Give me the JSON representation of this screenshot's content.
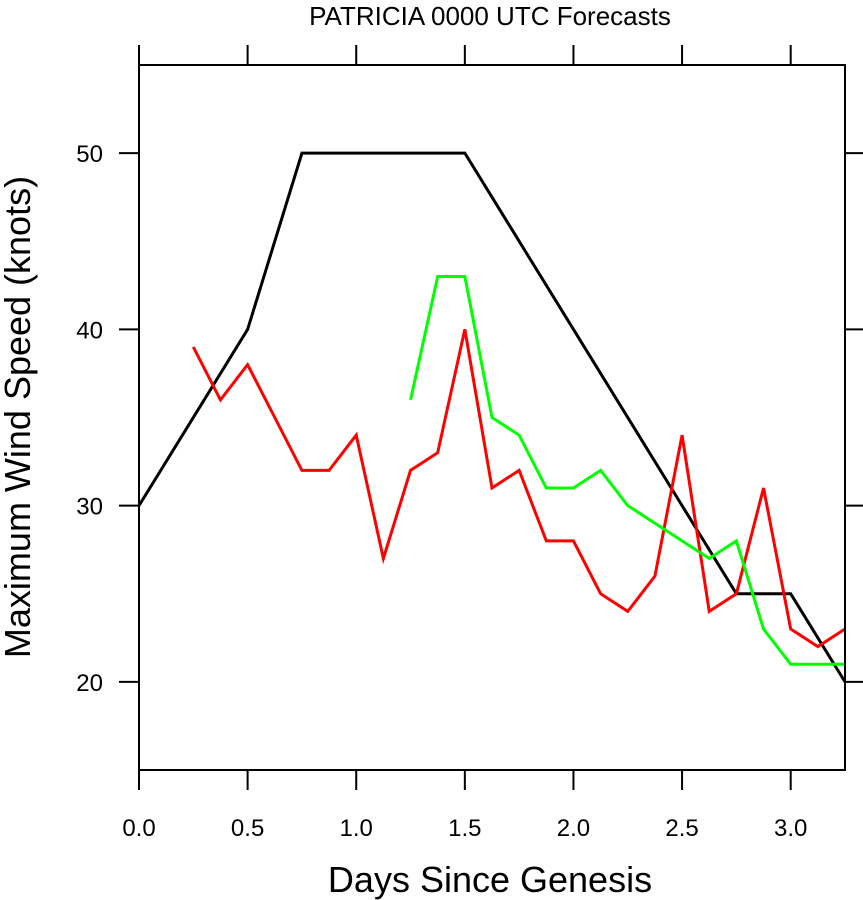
{
  "chart_data": {
    "type": "line",
    "title": "PATRICIA 0000 UTC Forecasts",
    "xlabel": "Days Since Genesis",
    "ylabel": "Maximum Wind Speed (knots)",
    "xlim": [
      0,
      3.25
    ],
    "ylim": [
      15,
      55
    ],
    "xticks": [
      "0.0",
      "0.5",
      "1.0",
      "1.5",
      "2.0",
      "2.5",
      "3.0"
    ],
    "yticks": [
      "20",
      "30",
      "40",
      "50"
    ],
    "grid": false,
    "series": [
      {
        "color": "#000000",
        "x": [
          0,
          0.5,
          0.75,
          1.5,
          2.5,
          2.75,
          3.0,
          3.25
        ],
        "y": [
          30,
          40,
          50,
          50,
          30,
          25,
          25,
          20
        ]
      },
      {
        "color": "#ff0000",
        "x": [
          0.25,
          0.375,
          0.5,
          0.625,
          0.75,
          0.875,
          1.0,
          1.125,
          1.25,
          1.375,
          1.5,
          1.625,
          1.75,
          1.875,
          2.0,
          2.125,
          2.25,
          2.375,
          2.5,
          2.625,
          2.75,
          2.875,
          3.0,
          3.125,
          3.25
        ],
        "y": [
          39,
          36,
          38,
          35,
          32,
          32,
          34,
          27,
          32,
          33,
          40,
          31,
          32,
          28,
          28,
          25,
          24,
          26,
          34,
          24,
          25,
          31,
          23,
          22,
          23
        ]
      },
      {
        "color": "#00ff00",
        "x": [
          1.25,
          1.375,
          1.5,
          1.625,
          1.75,
          1.875,
          2.0,
          2.125,
          2.25,
          2.375,
          2.5,
          2.625,
          2.75,
          2.875,
          3.0,
          3.125,
          3.25
        ],
        "y": [
          36,
          43,
          43,
          35,
          34,
          31,
          31,
          32,
          30,
          29,
          28,
          27,
          28,
          23,
          21,
          21,
          21
        ]
      }
    ]
  }
}
